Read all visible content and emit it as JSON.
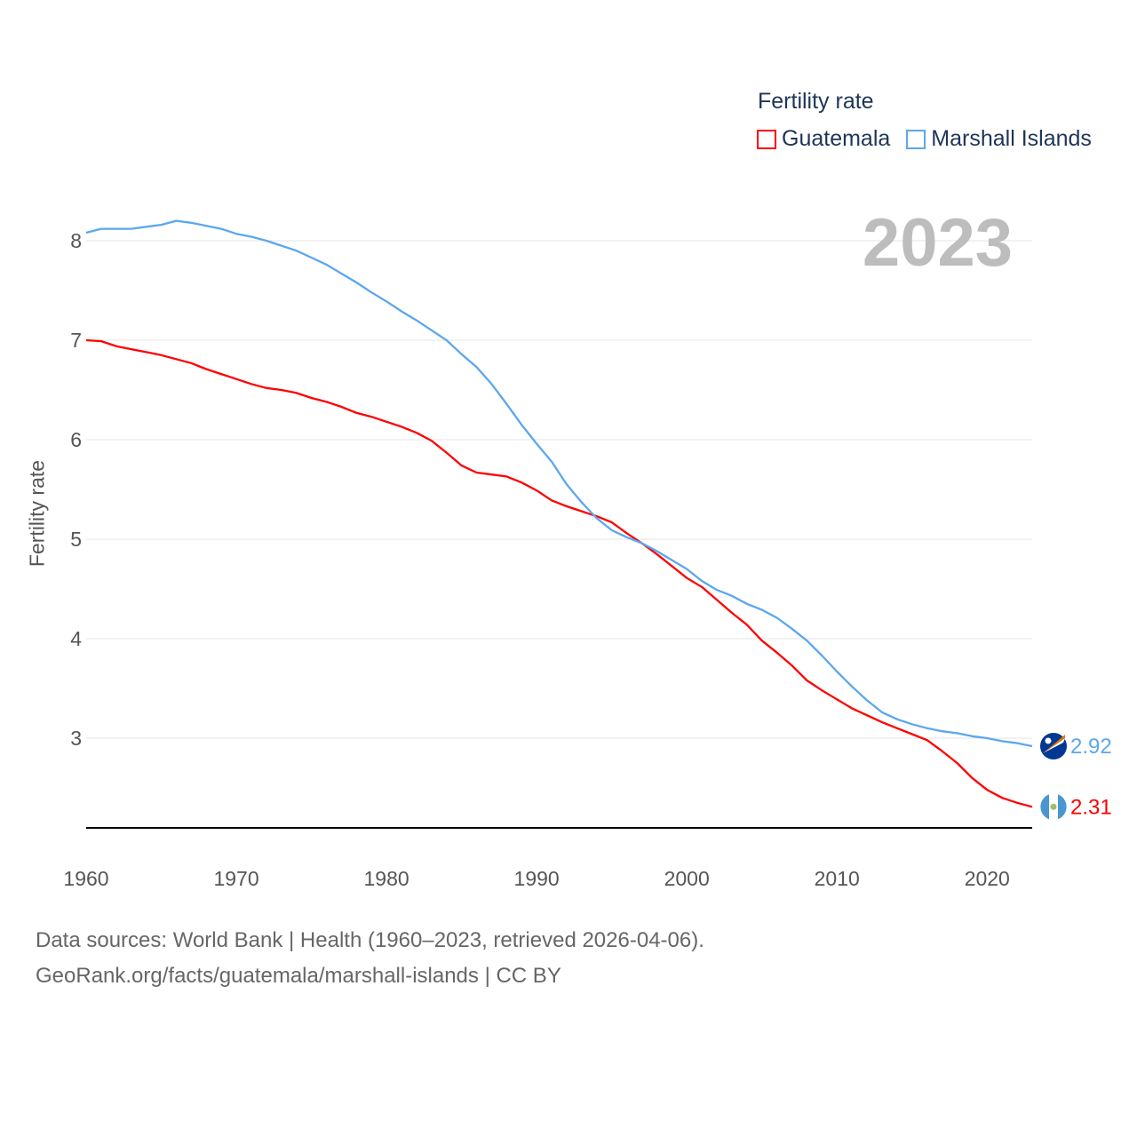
{
  "chart_data": {
    "type": "line",
    "title": "",
    "legend_title": "Fertility rate",
    "legend_placement": "top-right",
    "ylabel": "Fertility rate",
    "xlabel": "",
    "year_label": "2023",
    "xlim": [
      1960,
      2023
    ],
    "ylim": [
      2.1,
      8.3
    ],
    "x_ticks": [
      "1960",
      "1970",
      "1980",
      "1990",
      "2000",
      "2010",
      "2020"
    ],
    "y_ticks": [
      "3",
      "4",
      "5",
      "6",
      "7",
      "8"
    ],
    "grid": true,
    "x": [
      1960,
      1961,
      1962,
      1963,
      1964,
      1965,
      1966,
      1967,
      1968,
      1969,
      1970,
      1971,
      1972,
      1973,
      1974,
      1975,
      1976,
      1977,
      1978,
      1979,
      1980,
      1981,
      1982,
      1983,
      1984,
      1985,
      1986,
      1987,
      1988,
      1989,
      1990,
      1991,
      1992,
      1993,
      1994,
      1995,
      1996,
      1997,
      1998,
      1999,
      2000,
      2001,
      2002,
      2003,
      2004,
      2005,
      2006,
      2007,
      2008,
      2009,
      2010,
      2011,
      2012,
      2013,
      2014,
      2015,
      2016,
      2017,
      2018,
      2019,
      2020,
      2021,
      2022,
      2023
    ],
    "series": [
      {
        "name": "Guatemala",
        "color": "#ff0000",
        "end_label": "2.31",
        "values": [
          7.0,
          6.99,
          6.94,
          6.91,
          6.88,
          6.85,
          6.81,
          6.77,
          6.71,
          6.66,
          6.61,
          6.56,
          6.52,
          6.5,
          6.47,
          6.42,
          6.38,
          6.33,
          6.27,
          6.23,
          6.18,
          6.13,
          6.07,
          5.99,
          5.87,
          5.74,
          5.67,
          5.65,
          5.63,
          5.57,
          5.49,
          5.39,
          5.33,
          5.28,
          5.23,
          5.17,
          5.06,
          4.96,
          4.85,
          4.73,
          4.61,
          4.52,
          4.39,
          4.26,
          4.14,
          3.98,
          3.86,
          3.73,
          3.58,
          3.48,
          3.39,
          3.3,
          3.23,
          3.16,
          3.1,
          3.04,
          2.98,
          2.87,
          2.75,
          2.6,
          2.48,
          2.4,
          2.35,
          2.31
        ]
      },
      {
        "name": "Marshall Islands",
        "color": "#5ba7ee",
        "end_label": "2.92",
        "values": [
          8.08,
          8.12,
          8.12,
          8.12,
          8.14,
          8.16,
          8.2,
          8.18,
          8.15,
          8.12,
          8.07,
          8.04,
          8.0,
          7.95,
          7.9,
          7.83,
          7.76,
          7.67,
          7.58,
          7.48,
          7.39,
          7.29,
          7.2,
          7.1,
          7.0,
          6.86,
          6.73,
          6.56,
          6.36,
          6.15,
          5.96,
          5.78,
          5.55,
          5.37,
          5.21,
          5.09,
          5.02,
          4.96,
          4.88,
          4.79,
          4.7,
          4.58,
          4.49,
          4.43,
          4.35,
          4.29,
          4.21,
          4.1,
          3.98,
          3.83,
          3.67,
          3.52,
          3.38,
          3.26,
          3.19,
          3.14,
          3.1,
          3.07,
          3.05,
          3.02,
          3.0,
          2.97,
          2.95,
          2.92
        ]
      }
    ]
  },
  "footer": {
    "line1": "Data sources: World Bank | Health (1960–2023, retrieved 2026-04-06).",
    "line2": "GeoRank.org/facts/guatemala/marshall-islands | CC BY"
  }
}
